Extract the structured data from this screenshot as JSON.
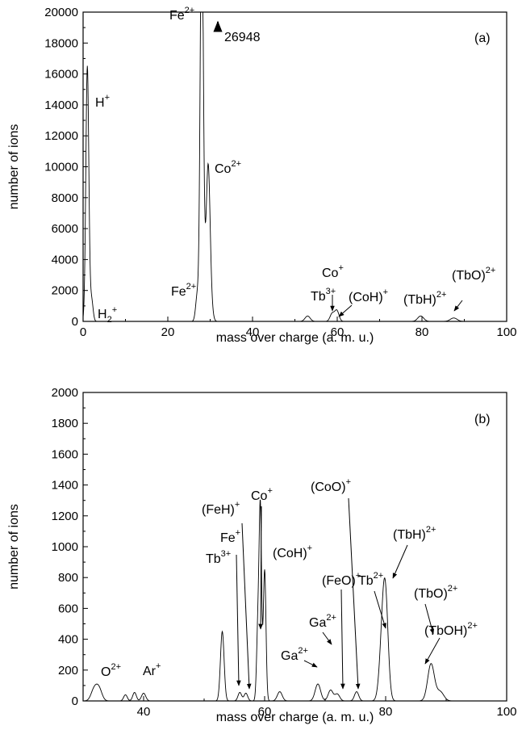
{
  "chart_data": [
    {
      "type": "line",
      "panel_label": "(a)",
      "xlabel": "mass over charge (a. m. u.)",
      "ylabel": "number of ions",
      "xlim": [
        0,
        100
      ],
      "ylim": [
        0,
        20000
      ],
      "x_ticks": [
        0,
        20,
        40,
        60,
        80,
        100
      ],
      "y_ticks": [
        0,
        2000,
        4000,
        6000,
        8000,
        10000,
        12000,
        14000,
        16000,
        18000,
        20000
      ],
      "peaks": [
        {
          "x": 1.0,
          "y": 16500,
          "w": 0.35
        },
        {
          "x": 2.0,
          "y": 1400,
          "w": 0.35
        },
        {
          "x": 27.0,
          "y": 1800,
          "w": 0.4
        },
        {
          "x": 28.0,
          "y": 26948,
          "w": 0.35
        },
        {
          "x": 28.5,
          "y": 2400,
          "w": 0.4
        },
        {
          "x": 29.5,
          "y": 9300,
          "w": 0.45
        },
        {
          "x": 30.0,
          "y": 1300,
          "w": 0.5
        },
        {
          "x": 53.0,
          "y": 350,
          "w": 0.6
        },
        {
          "x": 58.8,
          "y": 500,
          "w": 0.5
        },
        {
          "x": 59.9,
          "y": 700,
          "w": 0.5
        },
        {
          "x": 79.7,
          "y": 350,
          "w": 0.7
        },
        {
          "x": 87.5,
          "y": 220,
          "w": 0.8
        }
      ],
      "offscale_value": "26948",
      "annotations": [
        {
          "base": "H",
          "sup": "+",
          "sub": ""
        },
        {
          "base": "H",
          "sup": "+",
          "sub": "2"
        },
        {
          "base": "Fe",
          "sup": "2+",
          "sub": ""
        },
        {
          "base": "Fe",
          "sup": "2+",
          "sub": ""
        },
        {
          "base": "Co",
          "sup": "2+",
          "sub": ""
        },
        {
          "base": "Tb",
          "sup": "3+",
          "sub": ""
        },
        {
          "base": "Co",
          "sup": "+",
          "sub": ""
        },
        {
          "base": "(CoH)",
          "sup": "+",
          "sub": ""
        },
        {
          "base": "(TbH)",
          "sup": "2+",
          "sub": ""
        },
        {
          "base": "(TbO)",
          "sup": "2+",
          "sub": ""
        }
      ]
    },
    {
      "type": "line",
      "panel_label": "(b)",
      "xlabel": "mass over charge (a. m. u.)",
      "ylabel": "number of ions",
      "xlim": [
        30,
        100
      ],
      "ylim": [
        0,
        2000
      ],
      "x_ticks": [
        40,
        60,
        80,
        100
      ],
      "y_ticks": [
        0,
        200,
        400,
        600,
        800,
        1000,
        1200,
        1400,
        1600,
        1800,
        2000
      ],
      "peaks": [
        {
          "x": 31.8,
          "y": 70,
          "w": 0.5
        },
        {
          "x": 32.6,
          "y": 80,
          "w": 0.5
        },
        {
          "x": 37.0,
          "y": 40,
          "w": 0.3
        },
        {
          "x": 38.5,
          "y": 55,
          "w": 0.3
        },
        {
          "x": 40.0,
          "y": 50,
          "w": 0.35
        },
        {
          "x": 53.0,
          "y": 450,
          "w": 0.3
        },
        {
          "x": 55.9,
          "y": 55,
          "w": 0.3
        },
        {
          "x": 56.9,
          "y": 50,
          "w": 0.3
        },
        {
          "x": 58.9,
          "y": 490,
          "w": 0.22
        },
        {
          "x": 59.3,
          "y": 1200,
          "w": 0.2
        },
        {
          "x": 60.0,
          "y": 850,
          "w": 0.22
        },
        {
          "x": 62.5,
          "y": 60,
          "w": 0.4
        },
        {
          "x": 68.8,
          "y": 110,
          "w": 0.45
        },
        {
          "x": 70.9,
          "y": 70,
          "w": 0.4
        },
        {
          "x": 72.0,
          "y": 45,
          "w": 0.4
        },
        {
          "x": 75.2,
          "y": 60,
          "w": 0.35
        },
        {
          "x": 79.5,
          "y": 390,
          "w": 0.5
        },
        {
          "x": 80.0,
          "y": 520,
          "w": 0.45
        },
        {
          "x": 87.5,
          "y": 240,
          "w": 0.55
        },
        {
          "x": 89.0,
          "y": 60,
          "w": 0.6
        }
      ],
      "annotations": [
        {
          "base": "O",
          "sup": "2+",
          "sub": ""
        },
        {
          "base": "Ar",
          "sup": "+",
          "sub": ""
        },
        {
          "base": "Tb",
          "sup": "3+",
          "sub": ""
        },
        {
          "base": "Fe",
          "sup": "+",
          "sub": ""
        },
        {
          "base": "(FeH)",
          "sup": "+",
          "sub": ""
        },
        {
          "base": "Co",
          "sup": "+",
          "sub": ""
        },
        {
          "base": "(CoH)",
          "sup": "+",
          "sub": ""
        },
        {
          "base": "Ga",
          "sup": "2+",
          "sub": ""
        },
        {
          "base": "Ga",
          "sup": "2+",
          "sub": ""
        },
        {
          "base": "(FeO)",
          "sup": "+",
          "sub": ""
        },
        {
          "base": "(CoO)",
          "sup": "+",
          "sub": ""
        },
        {
          "base": "Tb",
          "sup": "2+",
          "sub": ""
        },
        {
          "base": "(TbH)",
          "sup": "2+",
          "sub": ""
        },
        {
          "base": "(TbO)",
          "sup": "2+",
          "sub": ""
        },
        {
          "base": "(TbOH)",
          "sup": "2+",
          "sub": ""
        }
      ]
    }
  ]
}
